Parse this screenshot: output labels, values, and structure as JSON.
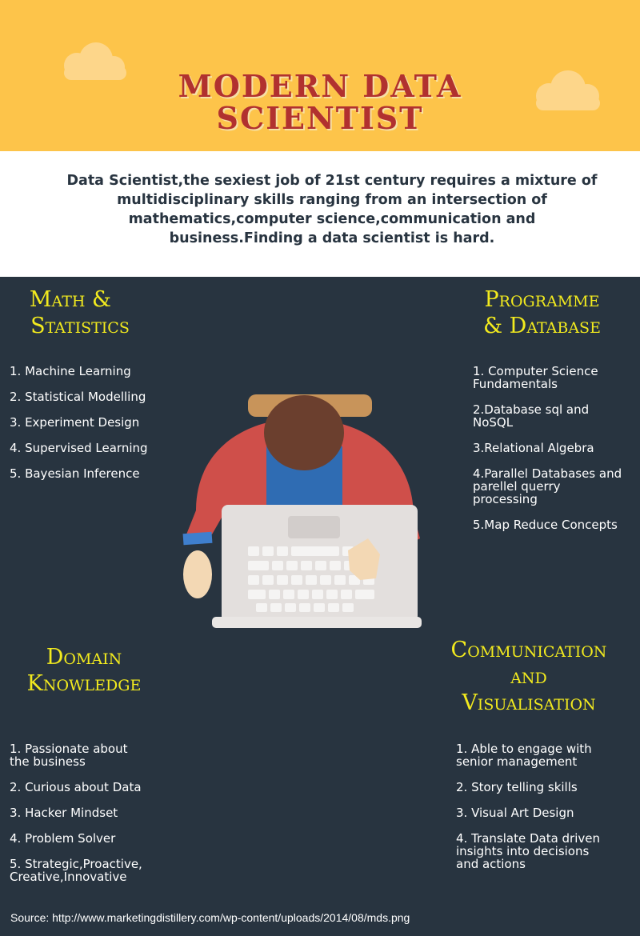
{
  "header": {
    "title_line1": "MODERN DATA",
    "title_line2": "SCIENTIST"
  },
  "intro": "Data Scientist,the sexiest job of 21st century requires a mixture of multidisciplinary skills ranging from an intersection of mathematics,computer science,communication and business.Finding a data scientist is hard.",
  "sections": {
    "math": {
      "heading_line1": "Math &",
      "heading_line2": "Statistics",
      "items": [
        "1. Machine Learning",
        "2. Statistical Modelling",
        "3. Experiment Design",
        "4. Supervised Learning",
        "5. Bayesian Inference"
      ]
    },
    "programme": {
      "heading_line1": "Programme",
      "heading_line2": "& Database",
      "items": [
        "1. Computer Science Fundamentals",
        "2.Database sql and NoSQL",
        "3.Relational Algebra",
        "4.Parallel Databases and parellel querry processing",
        "5.Map Reduce Concepts"
      ]
    },
    "domain": {
      "heading_line1": "Domain",
      "heading_line2": "Knowledge",
      "items": [
        "1. Passionate about the business",
        "2. Curious about Data",
        "3. Hacker Mindset",
        "4. Problem Solver",
        "5. Strategic,Proactive, Creative,Innovative"
      ]
    },
    "communication": {
      "heading_line1": "Communication",
      "heading_line2": "and",
      "heading_line3": "Visualisation",
      "items": [
        "1. Able to engage with senior management",
        "2. Story telling skills",
        "3. Visual Art Design",
        "4. Translate Data driven insights into decisions and actions"
      ]
    }
  },
  "source": "Source: http://www.marketingdistillery.com/wp-content/uploads/2014/08/mds.png",
  "colors": {
    "header_bg": "#fdc44a",
    "title": "#b1312f",
    "main_bg": "#283440",
    "heading": "#f2ea1e",
    "text": "#ffffff"
  }
}
